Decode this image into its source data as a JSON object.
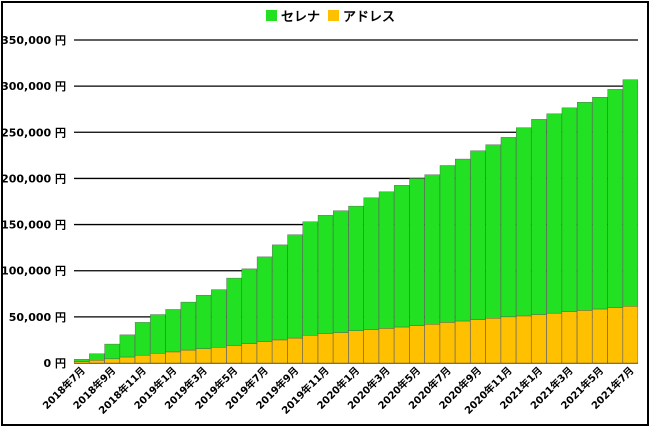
{
  "chart_data": {
    "type": "bar",
    "stacked": true,
    "title": "",
    "xlabel": "",
    "ylabel": "",
    "ylim": [
      0,
      350000
    ],
    "yticks": [
      "0 円",
      "50,000 円",
      "100,000 円",
      "150,000 円",
      "200,000 円",
      "250,000 円",
      "300,000 円",
      "350,000 円"
    ],
    "grid": true,
    "legend_position": "top-center",
    "categories": [
      "2018年7月",
      "2018年8月",
      "2018年9月",
      "2018年10月",
      "2018年11月",
      "2018年12月",
      "2019年1月",
      "2019年2月",
      "2019年3月",
      "2019年4月",
      "2019年5月",
      "2019年6月",
      "2019年7月",
      "2019年8月",
      "2019年9月",
      "2019年10月",
      "2019年11月",
      "2019年12月",
      "2020年1月",
      "2020年2月",
      "2020年3月",
      "2020年4月",
      "2020年5月",
      "2020年6月",
      "2020年7月",
      "2020年8月",
      "2020年9月",
      "2020年10月",
      "2020年11月",
      "2020年12月",
      "2021年1月",
      "2021年2月",
      "2021年3月",
      "2021年4月",
      "2021年5月",
      "2021年6月",
      "2021年7月"
    ],
    "shown_tick_labels": [
      "2018年7月",
      "2018年9月",
      "2018年11月",
      "2019年1月",
      "2019年3月",
      "2019年5月",
      "2019年7月",
      "2019年9月",
      "2019年11月",
      "2020年1月",
      "2020年3月",
      "2020年5月",
      "2020年7月",
      "2020年9月",
      "2020年11月",
      "2021年1月",
      "2021年3月",
      "2021年5月",
      "2021年7月"
    ],
    "series": [
      {
        "name": "アドレス",
        "color": "#ffc000",
        "values": [
          1500,
          3000,
          4500,
          6500,
          8500,
          10500,
          12000,
          14000,
          15500,
          17000,
          19000,
          21000,
          23000,
          25000,
          27000,
          30000,
          32000,
          33000,
          35000,
          36000,
          37500,
          39000,
          40500,
          42000,
          44000,
          45500,
          47000,
          48500,
          50000,
          51000,
          52500,
          54000,
          55500,
          57000,
          58500,
          60000,
          61500
        ]
      },
      {
        "name": "セレナ",
        "color": "#22e022",
        "values": [
          2500,
          7000,
          16000,
          24000,
          35500,
          42000,
          46000,
          52000,
          58000,
          62500,
          73000,
          81000,
          92000,
          103000,
          112000,
          123000,
          128000,
          132000,
          135000,
          143000,
          148000,
          153500,
          159500,
          162000,
          170000,
          175500,
          183000,
          188000,
          194500,
          204000,
          211500,
          216000,
          221000,
          225500,
          229500,
          236500,
          245500
        ]
      }
    ]
  }
}
